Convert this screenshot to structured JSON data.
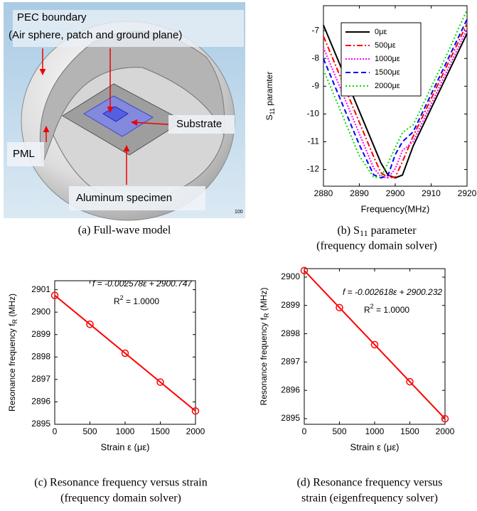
{
  "model_panel": {
    "labels": [
      "PEC boundary",
      "(Air sphere, patch and ground plane)",
      "Substrate",
      "PML",
      "Aluminum specimen",
      "100"
    ],
    "caption": "(a) Full-wave model"
  },
  "chart_data": [
    {
      "type": "line",
      "x_label": "Frequency(MHz)",
      "y_label": {
        "text": "S",
        "sub": "11",
        "rest": " paramter"
      },
      "caption": [
        {
          "text": "(b) S",
          "sub": "11",
          "rest": " parameter"
        },
        "(frequency domain solver)"
      ],
      "x": [
        2880,
        2885,
        2890,
        2894,
        2896,
        2898,
        2900,
        2902,
        2905,
        2910,
        2915,
        2920
      ],
      "series": [
        {
          "name": "0με",
          "color": "#000000",
          "dash": "",
          "values": [
            -6.8,
            -8.35,
            -9.9,
            -11.14,
            -11.76,
            -12.2,
            -12.3,
            -12.2,
            -11.15,
            -9.8,
            -8.45,
            -7.1
          ]
        },
        {
          "name": "500με",
          "color": "#ff0000",
          "dash": "8 3 2 3",
          "values": [
            -7.2,
            -8.75,
            -10.3,
            -11.54,
            -12.11,
            -12.29,
            -12.27,
            -11.72,
            -10.8,
            -9.45,
            -8.1,
            -6.75
          ]
        },
        {
          "name": "1000με",
          "color": "#ff00ff",
          "dash": "2 2",
          "values": [
            -7.61,
            -9.16,
            -10.71,
            -11.95,
            -12.25,
            -12.3,
            -11.97,
            -11.32,
            -10.99,
            -9.64,
            -8.29,
            -6.94
          ]
        },
        {
          "name": "1500με",
          "color": "#0000ff",
          "dash": "7 4",
          "values": [
            -8.01,
            -9.56,
            -11.11,
            -12.19,
            -12.3,
            -12.21,
            -11.46,
            -11.0,
            -10.64,
            -9.29,
            -7.94,
            -6.59
          ]
        },
        {
          "name": "2000με",
          "color": "#00dd00",
          "dash": "2 3",
          "values": [
            -8.41,
            -9.96,
            -11.51,
            -12.28,
            -12.28,
            -11.76,
            -11.21,
            -10.67,
            -10.39,
            -9.04,
            -7.69,
            -6.24
          ]
        }
      ],
      "xlim": [
        2880,
        2920
      ],
      "xticks": [
        2880,
        2890,
        2900,
        2910,
        2920
      ],
      "ylim": [
        -12.6,
        -6.1
      ],
      "yticks": [
        -12,
        -11,
        -10,
        -9,
        -8,
        -7
      ],
      "legend": "top-left"
    },
    {
      "type": "line",
      "x_label": "Strain  ε (με)",
      "y_label": {
        "text": "Resonance frequency  f",
        "sub": "R",
        "rest": " (MHz)"
      },
      "caption": [
        "(c) Resonance frequency versus strain",
        "(frequency domain solver)"
      ],
      "equation": "f = -0.002578ε + 2900.747",
      "r2": {
        "text": "R",
        "sup": "2",
        "rest": " = 1.0000"
      },
      "x": [
        0,
        500,
        1000,
        1500,
        2000
      ],
      "series": [
        {
          "color": "#ff0000",
          "marker": "circle",
          "values": [
            2900.747,
            2899.458,
            2898.169,
            2896.88,
            2895.591
          ]
        }
      ],
      "xlim": [
        0,
        2000
      ],
      "xticks": [
        0,
        500,
        1000,
        1500,
        2000
      ],
      "ylim": [
        2895,
        2901.4
      ],
      "yticks": [
        2895,
        2896,
        2897,
        2898,
        2899,
        2900,
        2901
      ]
    },
    {
      "type": "line",
      "x_label": "Strain  ε (με)",
      "y_label": {
        "text": "Resonance frequency  f",
        "sub": "R",
        "rest": " (MHz)"
      },
      "caption": [
        "(d) Resonance frequency versus",
        "strain (eigenfrequency solver)"
      ],
      "equation": "f = -0.002618ε + 2900.232",
      "r2": {
        "text": "R",
        "sup": "2",
        "rest": " = 1.0000"
      },
      "x": [
        0,
        500,
        1000,
        1500,
        2000
      ],
      "series": [
        {
          "color": "#ff0000",
          "marker": "circle",
          "values": [
            2900.232,
            2898.923,
            2897.614,
            2896.305,
            2894.996
          ]
        }
      ],
      "xlim": [
        0,
        2000
      ],
      "xticks": [
        0,
        500,
        1000,
        1500,
        2000
      ],
      "ylim": [
        2894.8,
        2900.3
      ],
      "yticks": [
        2895,
        2896,
        2897,
        2898,
        2899,
        2900
      ]
    }
  ]
}
